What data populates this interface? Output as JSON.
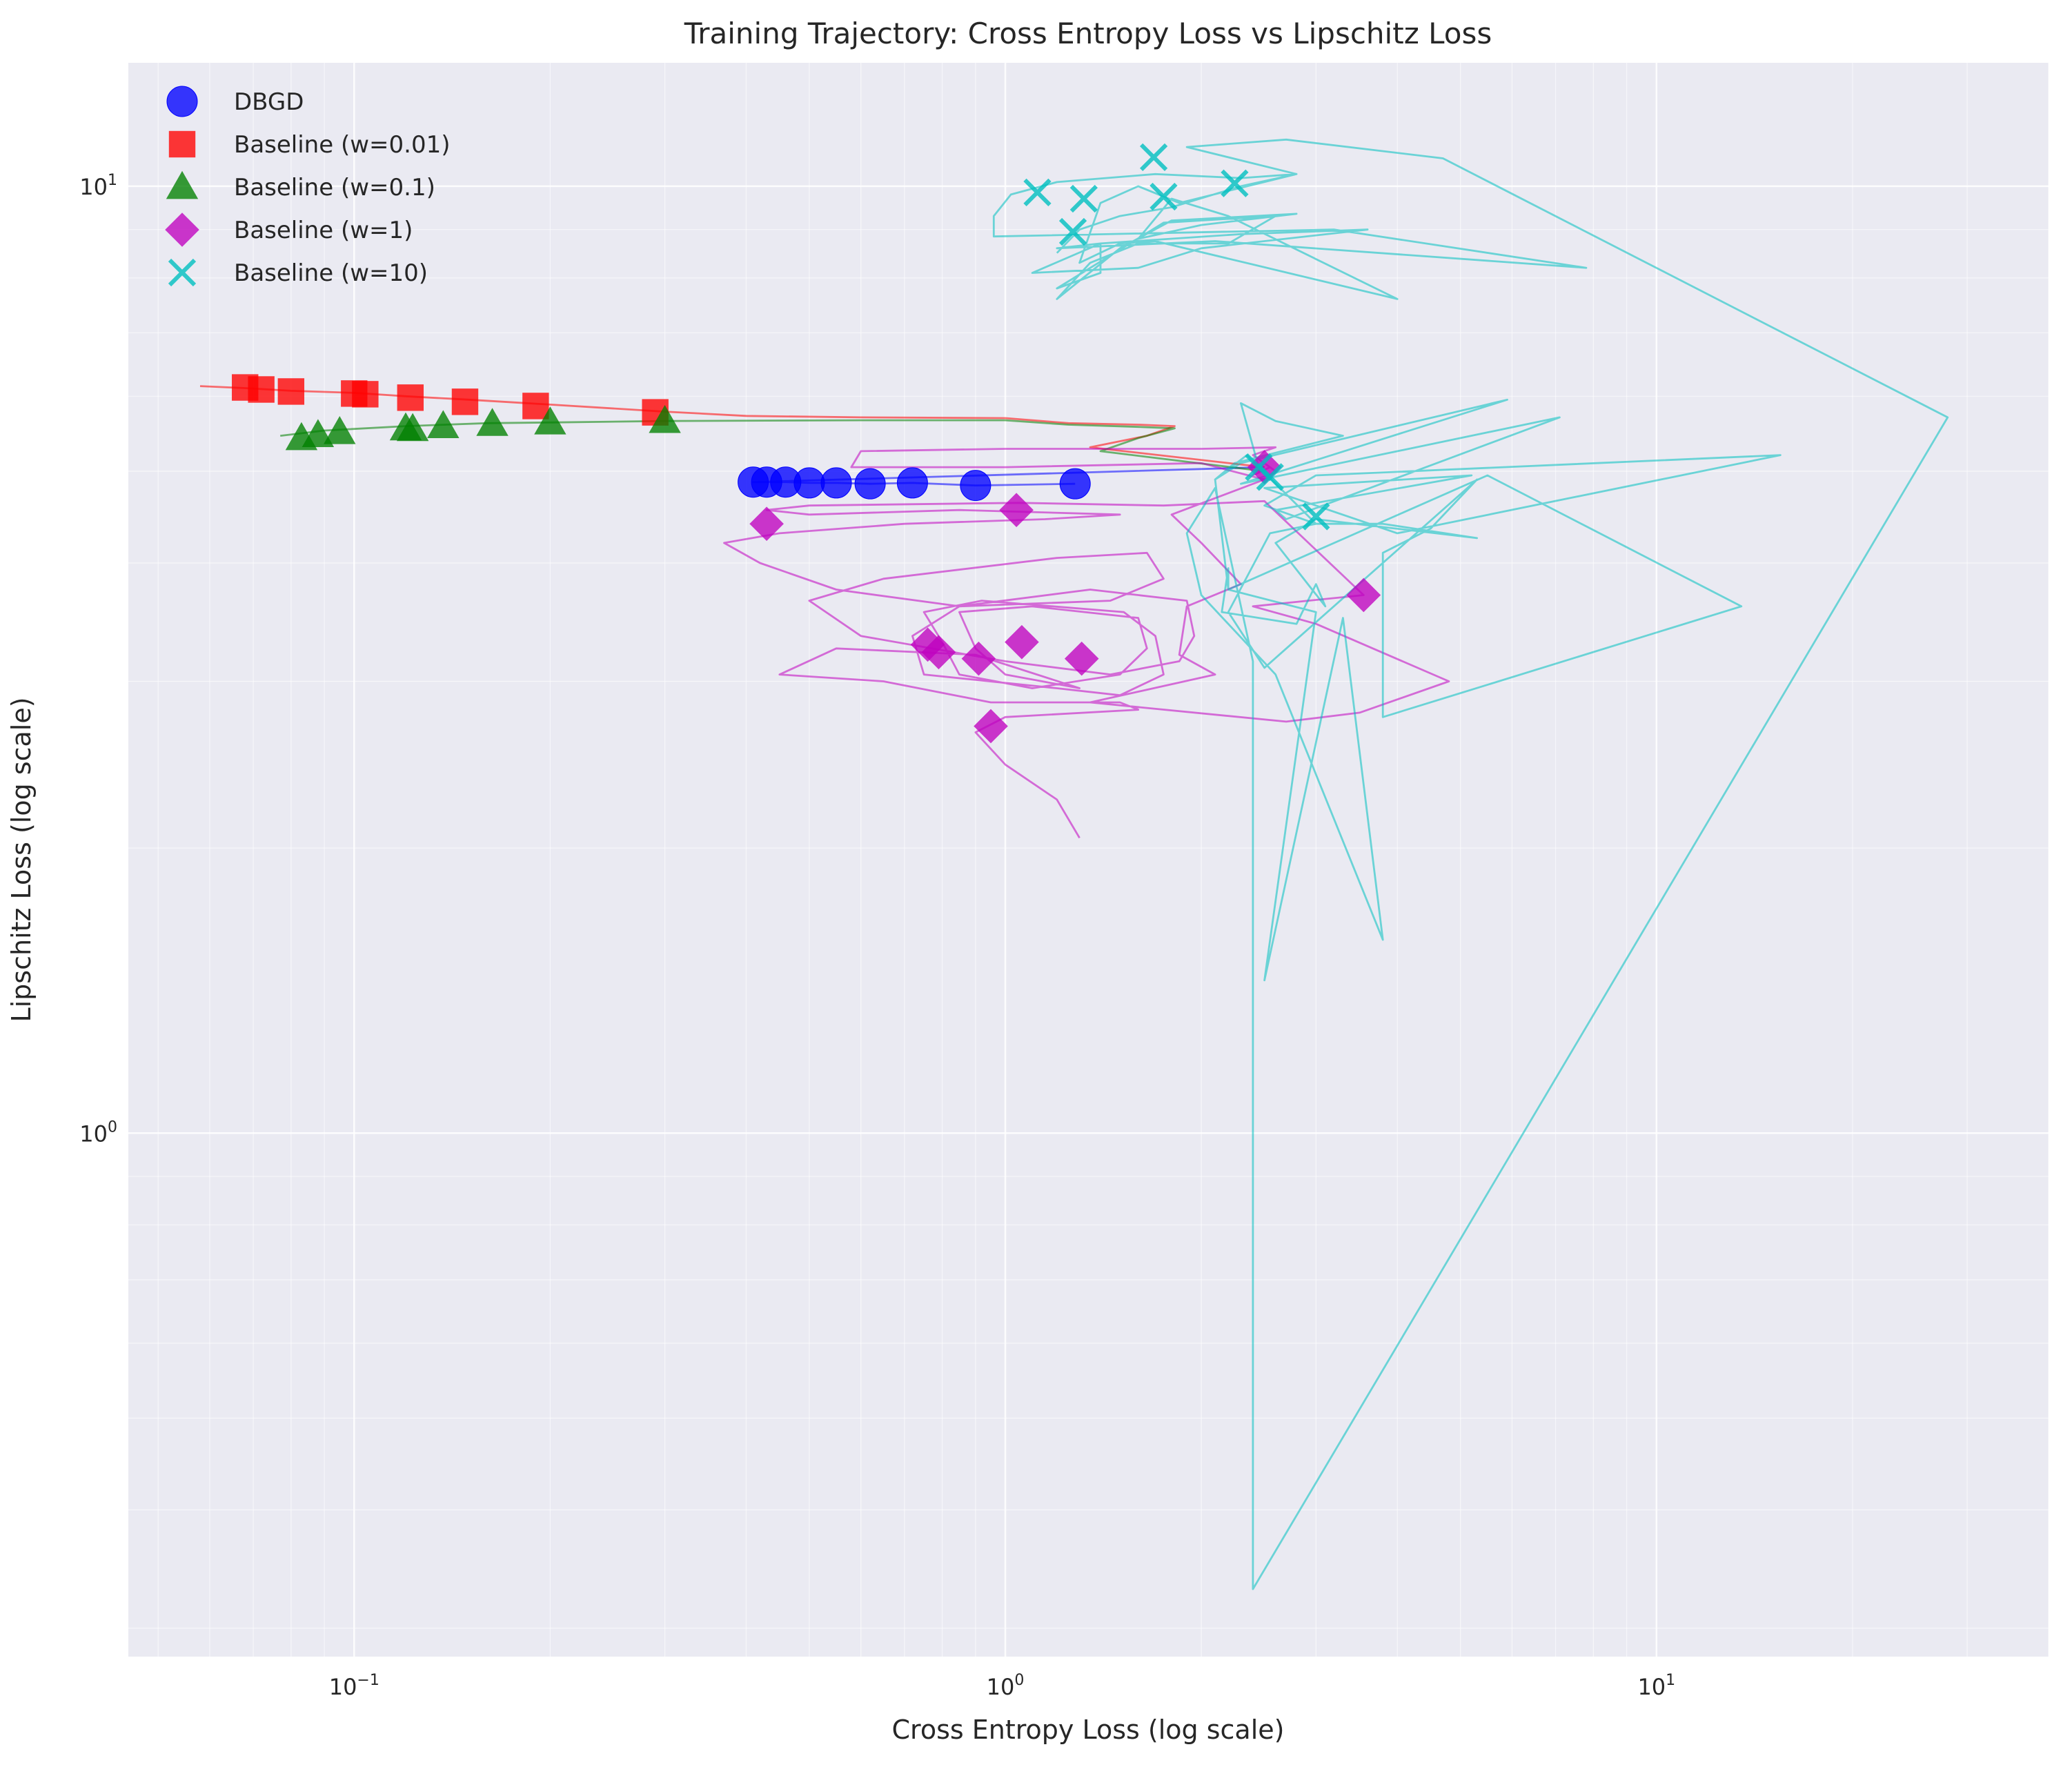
{
  "chart_data": {
    "type": "scatter",
    "title": "Training Trajectory: Cross Entropy Loss vs Lipschitz Loss",
    "xlabel": "Cross Entropy Loss (log scale)",
    "ylabel": "Lipschitz Loss (log scale)",
    "xscale": "log",
    "yscale": "log",
    "xlim": [
      0.045,
      40
    ],
    "ylim": [
      0.28,
      13.5
    ],
    "grid": true,
    "legend_position": "top-left",
    "x_ticks": [
      {
        "value": 0.1,
        "base": "10",
        "exp": "−1"
      },
      {
        "value": 1,
        "base": "10",
        "exp": "0"
      },
      {
        "value": 10,
        "base": "10",
        "exp": "1"
      }
    ],
    "y_ticks": [
      {
        "value": 1,
        "base": "10",
        "exp": "0"
      },
      {
        "value": 10,
        "base": "10",
        "exp": "1"
      }
    ],
    "series": [
      {
        "name": "DBGD",
        "color": "#0000ff",
        "marker": "circle",
        "line": [
          [
            1.28,
            4.85
          ],
          [
            0.9,
            4.83
          ],
          [
            0.72,
            4.86
          ],
          [
            0.62,
            4.85
          ],
          [
            0.55,
            4.86
          ],
          [
            0.5,
            4.86
          ],
          [
            0.46,
            4.87
          ],
          [
            0.43,
            4.87
          ],
          [
            0.41,
            4.87
          ],
          [
            2.5,
            5.05
          ]
        ],
        "points": [
          [
            1.28,
            4.85
          ],
          [
            0.9,
            4.83
          ],
          [
            0.72,
            4.86
          ],
          [
            0.62,
            4.85
          ],
          [
            0.55,
            4.86
          ],
          [
            0.5,
            4.86
          ],
          [
            0.46,
            4.87
          ],
          [
            0.43,
            4.87
          ],
          [
            0.41,
            4.87
          ]
        ]
      },
      {
        "name": "Baseline (w=0.01)",
        "color": "#ff0000",
        "marker": "square",
        "line": [
          [
            0.058,
            6.15
          ],
          [
            0.068,
            6.12
          ],
          [
            0.08,
            6.08
          ],
          [
            0.1,
            6.05
          ],
          [
            0.12,
            6.0
          ],
          [
            0.15,
            5.95
          ],
          [
            0.2,
            5.88
          ],
          [
            0.3,
            5.78
          ],
          [
            0.4,
            5.72
          ],
          [
            0.6,
            5.7
          ],
          [
            1.0,
            5.69
          ],
          [
            1.25,
            5.62
          ],
          [
            1.6,
            5.6
          ],
          [
            1.82,
            5.58
          ],
          [
            1.65,
            5.45
          ],
          [
            1.35,
            5.3
          ],
          [
            2.5,
            5.05
          ]
        ],
        "points": [
          [
            0.068,
            6.13
          ],
          [
            0.072,
            6.1
          ],
          [
            0.08,
            6.07
          ],
          [
            0.1,
            6.04
          ],
          [
            0.104,
            6.03
          ],
          [
            0.122,
            5.98
          ],
          [
            0.148,
            5.92
          ],
          [
            0.19,
            5.86
          ],
          [
            0.29,
            5.77
          ]
        ]
      },
      {
        "name": "Baseline (w=0.1)",
        "color": "#008000",
        "marker": "triangle",
        "line": [
          [
            0.077,
            5.45
          ],
          [
            0.09,
            5.52
          ],
          [
            0.12,
            5.58
          ],
          [
            0.16,
            5.62
          ],
          [
            0.2,
            5.63
          ],
          [
            0.3,
            5.65
          ],
          [
            0.6,
            5.66
          ],
          [
            1.0,
            5.66
          ],
          [
            1.25,
            5.6
          ],
          [
            1.6,
            5.57
          ],
          [
            1.82,
            5.55
          ],
          [
            1.6,
            5.42
          ],
          [
            1.4,
            5.25
          ],
          [
            2.5,
            5.0
          ]
        ],
        "points": [
          [
            0.083,
            5.42
          ],
          [
            0.088,
            5.46
          ],
          [
            0.095,
            5.5
          ],
          [
            0.12,
            5.55
          ],
          [
            0.123,
            5.54
          ],
          [
            0.137,
            5.58
          ],
          [
            0.163,
            5.61
          ],
          [
            0.2,
            5.63
          ],
          [
            0.3,
            5.65
          ]
        ]
      },
      {
        "name": "Baseline (w=1)",
        "color": "#bf00bf",
        "marker": "diamond",
        "line": [
          [
            1.3,
            2.05
          ],
          [
            1.2,
            2.25
          ],
          [
            1.0,
            2.45
          ],
          [
            0.9,
            2.65
          ],
          [
            1.0,
            2.75
          ],
          [
            1.6,
            2.8
          ],
          [
            1.5,
            2.85
          ],
          [
            0.95,
            2.85
          ],
          [
            0.65,
            3.0
          ],
          [
            0.45,
            3.05
          ],
          [
            0.55,
            3.25
          ],
          [
            0.9,
            3.2
          ],
          [
            1.3,
            2.95
          ],
          [
            1.0,
            3.05
          ],
          [
            0.9,
            3.25
          ],
          [
            0.85,
            3.55
          ],
          [
            1.1,
            3.6
          ],
          [
            1.6,
            3.5
          ],
          [
            1.65,
            3.25
          ],
          [
            1.5,
            3.05
          ],
          [
            1.1,
            2.95
          ],
          [
            0.85,
            3.05
          ],
          [
            0.8,
            3.3
          ],
          [
            0.75,
            3.55
          ],
          [
            0.92,
            3.65
          ],
          [
            1.52,
            3.55
          ],
          [
            1.7,
            3.35
          ],
          [
            1.75,
            3.05
          ],
          [
            1.5,
            2.9
          ],
          [
            1.2,
            2.95
          ],
          [
            0.75,
            3.05
          ],
          [
            0.72,
            3.35
          ],
          [
            0.85,
            3.6
          ],
          [
            1.35,
            3.75
          ],
          [
            1.9,
            3.65
          ],
          [
            1.95,
            3.35
          ],
          [
            1.85,
            3.15
          ],
          [
            1.45,
            3.05
          ],
          [
            1.0,
            3.15
          ],
          [
            0.6,
            3.35
          ],
          [
            0.5,
            3.65
          ],
          [
            0.65,
            3.85
          ],
          [
            1.2,
            4.05
          ],
          [
            1.65,
            4.1
          ],
          [
            1.75,
            3.85
          ],
          [
            1.45,
            3.65
          ],
          [
            0.85,
            3.6
          ],
          [
            0.55,
            3.75
          ],
          [
            0.42,
            4.0
          ],
          [
            0.37,
            4.2
          ],
          [
            0.45,
            4.3
          ],
          [
            0.7,
            4.4
          ],
          [
            1.15,
            4.45
          ],
          [
            1.5,
            4.5
          ],
          [
            0.85,
            4.55
          ],
          [
            0.5,
            4.5
          ],
          [
            0.43,
            4.55
          ],
          [
            0.5,
            4.6
          ],
          [
            1.05,
            4.63
          ],
          [
            1.75,
            4.6
          ],
          [
            2.5,
            4.65
          ],
          [
            3.55,
            3.7
          ],
          [
            2.4,
            3.6
          ],
          [
            3.0,
            3.45
          ],
          [
            4.8,
            3.0
          ],
          [
            3.5,
            2.78
          ],
          [
            2.7,
            2.72
          ],
          [
            1.35,
            2.85
          ],
          [
            2.1,
            3.05
          ],
          [
            1.85,
            3.2
          ],
          [
            1.9,
            3.6
          ],
          [
            2.3,
            3.8
          ],
          [
            2.0,
            4.2
          ],
          [
            1.8,
            4.5
          ],
          [
            2.5,
            4.9
          ],
          [
            2.0,
            5.1
          ],
          [
            1.0,
            5.05
          ],
          [
            0.58,
            5.05
          ],
          [
            0.6,
            5.25
          ],
          [
            1.0,
            5.28
          ],
          [
            2.0,
            5.28
          ],
          [
            2.6,
            5.3
          ],
          [
            2.4,
            5.2
          ],
          [
            2.6,
            5.0
          ],
          [
            2.5,
            5.1
          ],
          [
            2.4,
            4.95
          ],
          [
            2.55,
            5.05
          ]
        ],
        "points": [
          [
            2.5,
            5.05
          ],
          [
            1.04,
            4.55
          ],
          [
            0.43,
            4.4
          ],
          [
            3.55,
            3.7
          ],
          [
            0.76,
            3.28
          ],
          [
            0.79,
            3.22
          ],
          [
            1.06,
            3.3
          ],
          [
            0.91,
            3.17
          ],
          [
            1.31,
            3.17
          ],
          [
            0.95,
            2.69
          ]
        ]
      },
      {
        "name": "Baseline (w=10)",
        "color": "#00bfbf",
        "marker": "x",
        "line": [
          [
            2.45,
            5.05
          ],
          [
            2.3,
            5.9
          ],
          [
            2.6,
            5.65
          ],
          [
            3.3,
            5.45
          ],
          [
            2.25,
            5.1
          ],
          [
            2.1,
            4.9
          ],
          [
            2.35,
            5.2
          ],
          [
            3.0,
            4.4
          ],
          [
            2.55,
            4.3
          ],
          [
            2.2,
            3.55
          ],
          [
            2.5,
            3.1
          ],
          [
            5.3,
            4.9
          ],
          [
            4.5,
            4.35
          ],
          [
            3.8,
            4.1
          ],
          [
            3.8,
            2.75
          ],
          [
            13.5,
            3.6
          ],
          [
            5.5,
            4.95
          ],
          [
            2.2,
            3.75
          ],
          [
            2.2,
            3.95
          ],
          [
            2.15,
            3.55
          ],
          [
            2.8,
            3.45
          ],
          [
            3.0,
            3.8
          ],
          [
            3.1,
            3.6
          ],
          [
            2.6,
            4.2
          ],
          [
            3.0,
            4.45
          ],
          [
            5.3,
            4.25
          ],
          [
            3.8,
            4.4
          ],
          [
            3.0,
            4.4
          ],
          [
            2.5,
            4.6
          ],
          [
            3.0,
            4.95
          ],
          [
            15.5,
            5.2
          ],
          [
            4.0,
            4.3
          ],
          [
            2.5,
            4.8
          ],
          [
            5.2,
            4.95
          ],
          [
            2.6,
            4.55
          ],
          [
            2.7,
            4.45
          ],
          [
            7.1,
            5.7
          ],
          [
            2.3,
            4.85
          ],
          [
            5.9,
            5.95
          ],
          [
            2.3,
            5.1
          ],
          [
            2.1,
            4.9
          ],
          [
            2.2,
            3.75
          ],
          [
            3.0,
            3.55
          ],
          [
            2.5,
            1.45
          ],
          [
            3.3,
            3.5
          ],
          [
            3.8,
            1.6
          ],
          [
            2.6,
            3.05
          ],
          [
            2.0,
            3.7
          ],
          [
            1.9,
            4.3
          ],
          [
            2.1,
            4.8
          ],
          [
            2.4,
            3.15
          ],
          [
            2.4,
            0.33
          ],
          [
            28.0,
            5.7
          ],
          [
            4.7,
            10.7
          ],
          [
            2.7,
            11.2
          ],
          [
            1.9,
            11.0
          ],
          [
            2.8,
            10.3
          ],
          [
            1.85,
            9.6
          ],
          [
            1.6,
            10.0
          ],
          [
            1.4,
            9.6
          ],
          [
            1.3,
            8.3
          ],
          [
            1.5,
            8.7
          ],
          [
            1.7,
            8.75
          ],
          [
            4.0,
            7.6
          ],
          [
            2.2,
            9.3
          ],
          [
            1.8,
            9.7
          ],
          [
            1.6,
            8.8
          ],
          [
            2.0,
            9.1
          ],
          [
            2.8,
            9.35
          ],
          [
            1.8,
            9.2
          ],
          [
            1.5,
            8.6
          ],
          [
            1.2,
            7.6
          ],
          [
            1.35,
            8.3
          ],
          [
            1.6,
            8.7
          ],
          [
            2.2,
            8.7
          ],
          [
            2.6,
            9.3
          ],
          [
            1.75,
            9.15
          ],
          [
            1.2,
            7.8
          ],
          [
            1.4,
            8.1
          ],
          [
            1.4,
            8.7
          ],
          [
            2.3,
            8.9
          ],
          [
            3.6,
            9.0
          ],
          [
            2.0,
            8.6
          ],
          [
            1.6,
            8.2
          ],
          [
            1.1,
            8.1
          ],
          [
            1.4,
            8.7
          ],
          [
            1.2,
            8.6
          ],
          [
            1.75,
            8.7
          ],
          [
            2.1,
            8.75
          ],
          [
            7.8,
            8.2
          ],
          [
            3.2,
            9.0
          ],
          [
            0.96,
            8.85
          ],
          [
            0.96,
            9.3
          ],
          [
            1.02,
            9.8
          ],
          [
            1.2,
            10.1
          ],
          [
            1.7,
            10.3
          ],
          [
            2.3,
            10.2
          ],
          [
            2.8,
            10.3
          ],
          [
            2.3,
            10.0
          ],
          [
            1.8,
            9.5
          ],
          [
            1.5,
            9.3
          ],
          [
            1.3,
            9.0
          ],
          [
            1.2,
            8.5
          ]
        ],
        "points": [
          [
            1.12,
            9.85
          ],
          [
            1.32,
            9.7
          ],
          [
            1.69,
            10.73
          ],
          [
            1.75,
            9.75
          ],
          [
            2.25,
            10.07
          ],
          [
            1.27,
            8.95
          ],
          [
            2.45,
            5.05
          ],
          [
            2.55,
            4.93
          ],
          [
            3.0,
            4.48
          ]
        ]
      }
    ]
  }
}
